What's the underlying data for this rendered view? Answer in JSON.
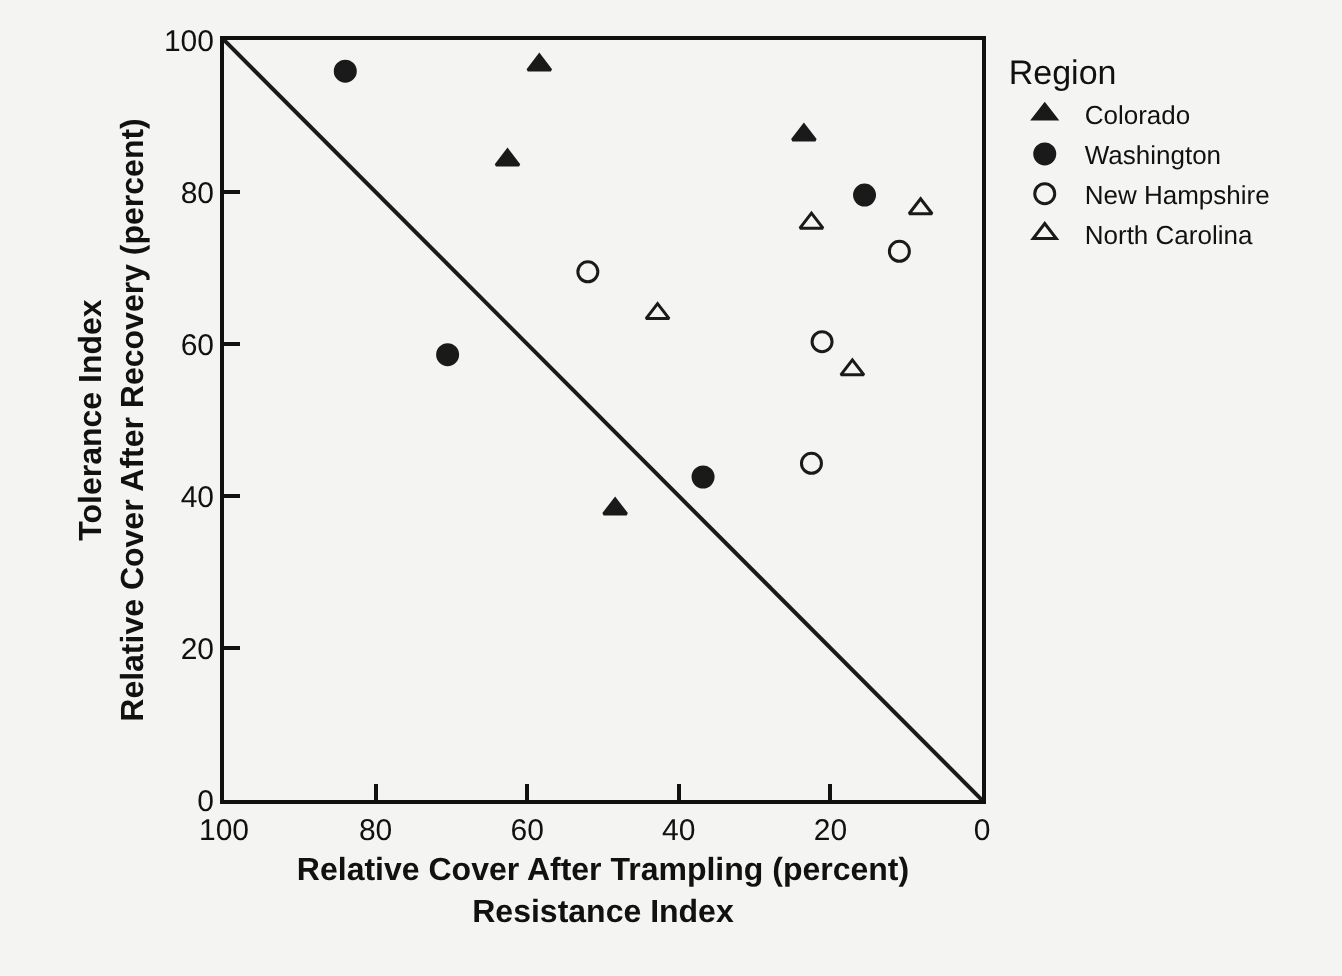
{
  "chart_data": {
    "type": "scatter",
    "xlabel": "Relative Cover After Trampling (percent)\nResistance Index",
    "ylabel": "Tolerance Index\nRelative Cover After Recovery (percent)",
    "legend_title": "Region",
    "series": [
      {
        "name": "Colorado",
        "color": "#1a1a1a",
        "marker": "triangle",
        "x": [
          58.4,
          62.6,
          23.5,
          48.4
        ],
        "values": [
          96.7,
          84.2,
          87.5,
          38.3
        ]
      },
      {
        "name": "Washington",
        "color": "#1a1a1a",
        "marker": "circle",
        "x": [
          84.0,
          70.5,
          36.8,
          15.5
        ],
        "values": [
          95.9,
          58.6,
          42.5,
          79.6
        ]
      },
      {
        "name": "New Hampshire",
        "color": "#1a1a1a",
        "marker": "circle-open",
        "x": [
          52.0,
          21.1,
          22.5,
          10.9
        ],
        "values": [
          69.5,
          60.3,
          44.3,
          72.2
        ]
      },
      {
        "name": "North Carolina",
        "color": "#1a1a1a",
        "marker": "triangle-open",
        "x": [
          22.5,
          42.8,
          17.1,
          8.1
        ],
        "values": [
          75.9,
          64.0,
          56.6,
          77.8
        ]
      },
      {
        "type": "line",
        "color": "#1a1a1a",
        "marker": "none",
        "x": [
          100,
          0
        ],
        "values": [
          100,
          0
        ]
      }
    ],
    "xlim": [
      100,
      0
    ],
    "xticks": [
      100,
      80,
      60,
      40,
      20,
      0
    ],
    "ylim": [
      0,
      100
    ],
    "yticks": [
      0,
      20,
      40,
      60,
      80,
      100
    ],
    "grid": false,
    "legend": "top right"
  }
}
